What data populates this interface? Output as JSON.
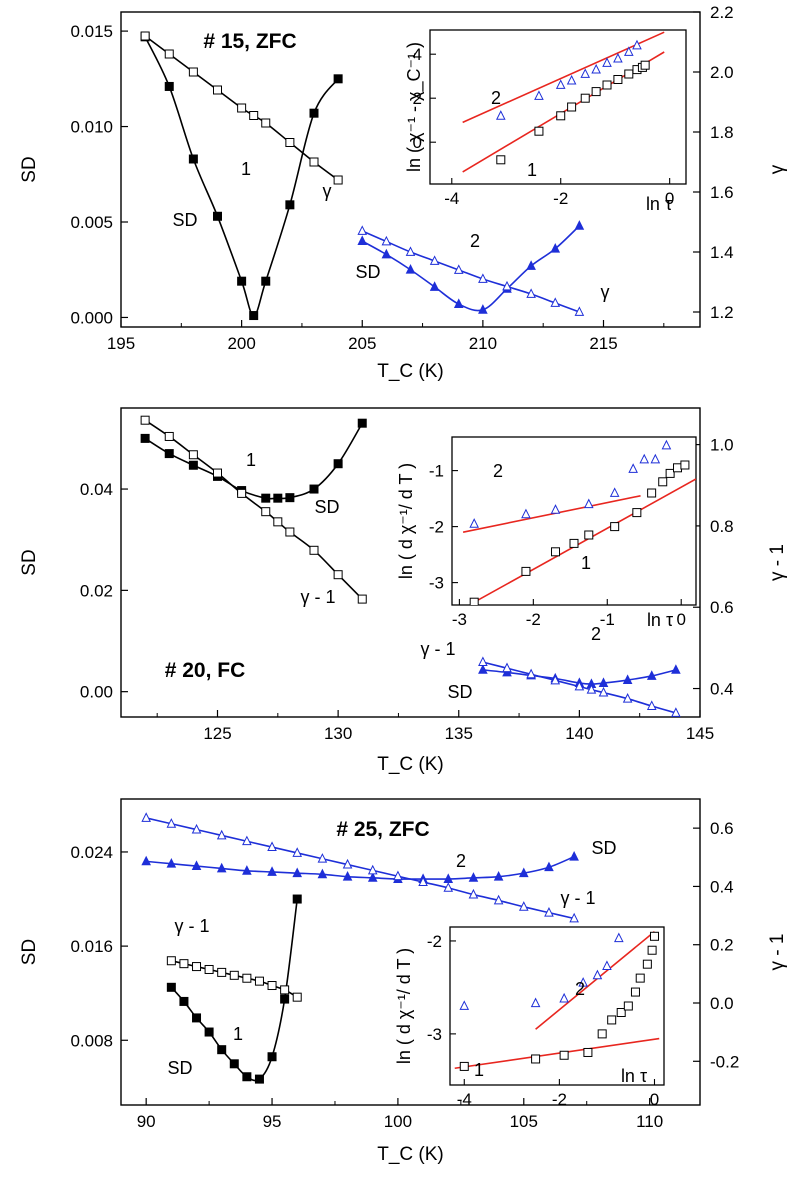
{
  "chart_data": [
    {
      "type": "scatter",
      "title": "# 15, ZFC",
      "xlabel": "T_C (K)",
      "ylabel": "SD",
      "y2label": "γ",
      "xlim": [
        195,
        219
      ],
      "ylim": [
        -0.0005,
        0.016
      ],
      "y2lim": [
        1.15,
        2.2
      ],
      "xticks": [
        "195",
        "200",
        "205",
        "210",
        "215"
      ],
      "yticks": [
        "0.000",
        "0.005",
        "0.010",
        "0.015"
      ],
      "y2ticks": [
        "1.2",
        "1.4",
        "1.6",
        "1.8",
        "2.0",
        "2.2"
      ],
      "series": [
        {
          "name": "SD",
          "curve": "1",
          "axis": "left",
          "color": "#000000",
          "marker": "filled-square",
          "x": [
            196,
            197,
            198,
            199,
            200,
            200.5,
            201,
            202,
            203,
            204
          ],
          "y": [
            0.0147,
            0.0121,
            0.0083,
            0.0053,
            0.0019,
            0.0001,
            0.0019,
            0.0059,
            0.0107,
            0.0125
          ]
        },
        {
          "name": "γ",
          "curve": "1",
          "axis": "right",
          "color": "#000000",
          "marker": "open-square",
          "x": [
            196,
            197,
            198,
            199,
            200,
            200.5,
            201,
            202,
            203,
            204
          ],
          "y": [
            2.12,
            2.06,
            2.0,
            1.94,
            1.88,
            1.855,
            1.83,
            1.765,
            1.7,
            1.64
          ]
        },
        {
          "name": "SD",
          "curve": "2",
          "axis": "left",
          "color": "#1e2fd8",
          "marker": "filled-triangle",
          "x": [
            205,
            206,
            207,
            208,
            209,
            210,
            211,
            212,
            213,
            214
          ],
          "y": [
            0.004,
            0.0033,
            0.0025,
            0.0016,
            0.0007,
            0.0004,
            0.0015,
            0.0027,
            0.0036,
            0.0048
          ]
        },
        {
          "name": "γ",
          "curve": "2",
          "axis": "right",
          "color": "#1e2fd8",
          "marker": "open-triangle",
          "x": [
            205,
            206,
            207,
            208,
            209,
            210,
            211,
            212,
            213,
            214
          ],
          "y": [
            1.47,
            1.435,
            1.4,
            1.37,
            1.34,
            1.31,
            1.285,
            1.26,
            1.23,
            1.2
          ]
        }
      ],
      "labels": [
        "1",
        "SD",
        "γ",
        "2",
        "SD",
        "γ"
      ],
      "inset": {
        "xlabel": "ln τ",
        "ylabel": "ln ( χ⁻¹ - χ_C⁻¹ )",
        "xlim": [
          -4.4,
          0.3
        ],
        "ylim": [
          -1.9,
          5.1
        ],
        "xticks": [
          "-4",
          "-2",
          "0"
        ],
        "yticks": [
          "0",
          "2",
          "4"
        ],
        "fit_color": "#e8261f",
        "series": [
          {
            "name": "",
            "curve": "1",
            "color": "#000000",
            "marker": "open-square",
            "x": [
              -3.1,
              -2.4,
              -2.0,
              -1.8,
              -1.55,
              -1.35,
              -1.15,
              -0.95,
              -0.75,
              -0.6,
              -0.5,
              -0.45
            ],
            "y": [
              -0.8,
              0.5,
              1.2,
              1.6,
              2.0,
              2.3,
              2.6,
              2.85,
              3.1,
              3.3,
              3.4,
              3.5
            ]
          },
          {
            "name": "",
            "curve": "2",
            "color": "#1e2fd8",
            "marker": "open-triangle",
            "x": [
              -3.1,
              -2.4,
              -2.0,
              -1.8,
              -1.55,
              -1.35,
              -1.15,
              -0.95,
              -0.75,
              -0.6
            ],
            "y": [
              1.2,
              2.1,
              2.6,
              2.8,
              3.1,
              3.3,
              3.6,
              3.8,
              4.1,
              4.4
            ]
          }
        ],
        "fits": [
          {
            "curve": "1",
            "x": [
              -3.8,
              -0.1
            ],
            "y": [
              -1.35,
              4.1
            ]
          },
          {
            "curve": "2",
            "x": [
              -3.8,
              -0.1
            ],
            "y": [
              0.9,
              5.0
            ]
          }
        ],
        "labels": [
          "1",
          "2"
        ]
      }
    },
    {
      "type": "scatter",
      "title": "# 20, FC",
      "xlabel": "T_C (K)",
      "ylabel": "SD",
      "y2label": "γ - 1",
      "xlim": [
        121,
        145
      ],
      "ylim": [
        -0.005,
        0.056
      ],
      "y2lim": [
        0.33,
        1.09
      ],
      "xticks": [
        "125",
        "130",
        "135",
        "140",
        "145"
      ],
      "yticks": [
        "0.00",
        "0.02",
        "0.04"
      ],
      "y2ticks": [
        "0.4",
        "0.6",
        "0.8",
        "1.0"
      ],
      "series": [
        {
          "name": "SD",
          "curve": "1",
          "axis": "left",
          "color": "#000000",
          "marker": "filled-square",
          "x": [
            122,
            123,
            124,
            125,
            126,
            127,
            127.5,
            128,
            129,
            130,
            131
          ],
          "y": [
            0.05,
            0.047,
            0.0447,
            0.0425,
            0.0397,
            0.0382,
            0.0382,
            0.0383,
            0.04,
            0.045,
            0.053
          ]
        },
        {
          "name": "γ - 1",
          "curve": "1",
          "axis": "right",
          "color": "#000000",
          "marker": "open-square",
          "x": [
            122,
            123,
            124,
            125,
            126,
            127,
            127.5,
            128,
            129,
            130,
            131
          ],
          "y": [
            1.06,
            1.02,
            0.975,
            0.93,
            0.88,
            0.835,
            0.81,
            0.785,
            0.74,
            0.68,
            0.62
          ]
        },
        {
          "name": "SD",
          "curve": "2",
          "axis": "left",
          "color": "#1e2fd8",
          "marker": "filled-triangle",
          "x": [
            136,
            137,
            138,
            139,
            140,
            140.5,
            141,
            142,
            143,
            144
          ],
          "y": [
            0.0043,
            0.0038,
            0.0032,
            0.0026,
            0.0017,
            0.0015,
            0.0017,
            0.0023,
            0.0031,
            0.0043
          ]
        },
        {
          "name": "γ - 1",
          "curve": "2",
          "axis": "right",
          "color": "#1e2fd8",
          "marker": "open-triangle",
          "x": [
            136,
            137,
            138,
            139,
            140,
            140.5,
            141,
            142,
            143,
            144
          ],
          "y": [
            0.465,
            0.45,
            0.435,
            0.42,
            0.405,
            0.397,
            0.39,
            0.375,
            0.357,
            0.34
          ]
        }
      ],
      "labels": [
        "1",
        "SD",
        "γ - 1",
        "γ - 1",
        "2",
        "SD"
      ],
      "inset": {
        "xlabel": "ln τ",
        "ylabel": "ln ( d χ⁻¹/ d T )",
        "xlim": [
          -3.1,
          0.2
        ],
        "ylim": [
          -3.4,
          -0.4
        ],
        "xticks": [
          "-3",
          "-2",
          "-1",
          "0"
        ],
        "yticks": [
          "-3",
          "-2",
          "-1"
        ],
        "fit_color": "#e8261f",
        "series": [
          {
            "name": "",
            "curve": "1",
            "color": "#000000",
            "marker": "open-square",
            "x": [
              -2.8,
              -2.1,
              -1.7,
              -1.45,
              -1.25,
              -0.9,
              -0.6,
              -0.4,
              -0.25,
              -0.15,
              -0.05,
              0.05
            ],
            "y": [
              -3.35,
              -2.8,
              -2.45,
              -2.3,
              -2.15,
              -2.0,
              -1.75,
              -1.4,
              -1.2,
              -1.05,
              -0.95,
              -0.9
            ]
          },
          {
            "name": "",
            "curve": "2",
            "color": "#1e2fd8",
            "marker": "open-triangle",
            "x": [
              -2.8,
              -2.1,
              -1.7,
              -1.25,
              -0.9,
              -0.65,
              -0.5,
              -0.35,
              -0.2
            ],
            "y": [
              -1.95,
              -1.78,
              -1.7,
              -1.6,
              -1.4,
              -0.97,
              -0.8,
              -0.8,
              -0.55
            ]
          }
        ],
        "fits": [
          {
            "curve": "1",
            "x": [
              -2.8,
              0.2
            ],
            "y": [
              -3.35,
              -1.15
            ]
          },
          {
            "curve": "2",
            "x": [
              -2.95,
              -0.55
            ],
            "y": [
              -2.1,
              -1.45
            ]
          }
        ],
        "labels": [
          "1",
          "2"
        ]
      }
    },
    {
      "type": "scatter",
      "title": "# 25, ZFC",
      "xlabel": "T_C (K)",
      "ylabel": "SD",
      "y2label": "γ - 1",
      "xlim": [
        89,
        112
      ],
      "ylim": [
        0.0025,
        0.0285
      ],
      "y2lim": [
        -0.35,
        0.7
      ],
      "xticks": [
        "90",
        "95",
        "100",
        "105",
        "110"
      ],
      "yticks": [
        "0.008",
        "0.016",
        "0.024"
      ],
      "y2ticks": [
        "-0.2",
        "0.0",
        "0.2",
        "0.4",
        "0.6"
      ],
      "series": [
        {
          "name": "SD",
          "curve": "1",
          "axis": "left",
          "color": "#000000",
          "marker": "filled-square",
          "x": [
            91,
            91.5,
            92,
            92.5,
            93,
            93.5,
            94,
            94.5,
            95,
            95.5,
            96
          ],
          "y": [
            0.0125,
            0.0113,
            0.0099,
            0.0087,
            0.0072,
            0.006,
            0.0049,
            0.0047,
            0.0066,
            0.0115,
            0.02
          ]
        },
        {
          "name": "γ - 1",
          "curve": "1",
          "axis": "right",
          "color": "#000000",
          "marker": "open-square",
          "x": [
            91,
            91.5,
            92,
            92.5,
            93,
            93.5,
            94,
            94.5,
            95,
            95.5,
            96
          ],
          "y": [
            0.145,
            0.135,
            0.125,
            0.115,
            0.105,
            0.095,
            0.085,
            0.075,
            0.06,
            0.045,
            0.02
          ]
        },
        {
          "name": "SD",
          "curve": "2",
          "axis": "left",
          "color": "#1e2fd8",
          "marker": "filled-triangle",
          "x": [
            90,
            91,
            92,
            93,
            94,
            95,
            96,
            97,
            98,
            99,
            100,
            101,
            102,
            103,
            104,
            105,
            106,
            107
          ],
          "y": [
            0.0232,
            0.023,
            0.0228,
            0.0226,
            0.0224,
            0.0223,
            0.0222,
            0.0221,
            0.0219,
            0.0218,
            0.0217,
            0.0217,
            0.0217,
            0.0218,
            0.0219,
            0.0222,
            0.0227,
            0.0236
          ]
        },
        {
          "name": "γ - 1",
          "curve": "2",
          "axis": "right",
          "color": "#1e2fd8",
          "marker": "open-triangle",
          "x": [
            90,
            91,
            92,
            93,
            94,
            95,
            96,
            97,
            98,
            99,
            100,
            101,
            102,
            103,
            104,
            105,
            106,
            107
          ],
          "y": [
            0.635,
            0.615,
            0.595,
            0.575,
            0.555,
            0.535,
            0.515,
            0.495,
            0.475,
            0.455,
            0.435,
            0.415,
            0.395,
            0.372,
            0.352,
            0.33,
            0.31,
            0.29
          ]
        }
      ],
      "labels": [
        "2",
        "SD",
        "γ - 1",
        "γ - 1",
        "1",
        "SD"
      ],
      "inset": {
        "xlabel": "ln τ",
        "ylabel": "ln ( d χ⁻¹/ d T )",
        "xlim": [
          -4.3,
          0.2
        ],
        "ylim": [
          -3.55,
          -1.85
        ],
        "xticks": [
          "-4",
          "-2",
          "0"
        ],
        "yticks": [
          "-3",
          "-2"
        ],
        "fit_color": "#e8261f",
        "series": [
          {
            "name": "",
            "curve": "1",
            "color": "#000000",
            "marker": "open-square",
            "x": [
              -4.0,
              -2.5,
              -1.9,
              -1.4,
              -1.1,
              -0.9,
              -0.7,
              -0.55,
              -0.4,
              -0.3,
              -0.15,
              -0.05,
              0.0
            ],
            "y": [
              -3.35,
              -3.27,
              -3.23,
              -3.2,
              -3.0,
              -2.85,
              -2.77,
              -2.7,
              -2.55,
              -2.4,
              -2.25,
              -2.1,
              -1.95
            ]
          },
          {
            "name": "",
            "curve": "2",
            "color": "#1e2fd8",
            "marker": "open-triangle",
            "x": [
              -4.0,
              -2.5,
              -1.9,
              -1.5,
              -1.2,
              -1.0,
              -0.75
            ],
            "y": [
              -2.7,
              -2.67,
              -2.62,
              -2.45,
              -2.37,
              -2.27,
              -1.97
            ]
          }
        ],
        "fits": [
          {
            "curve": "1",
            "x": [
              -4.2,
              0.1
            ],
            "y": [
              -3.37,
              -3.05
            ]
          },
          {
            "curve": "2",
            "x": [
              -2.5,
              0.0
            ],
            "y": [
              -2.95,
              -1.9
            ]
          }
        ],
        "labels": [
          "1",
          "2"
        ]
      }
    }
  ]
}
